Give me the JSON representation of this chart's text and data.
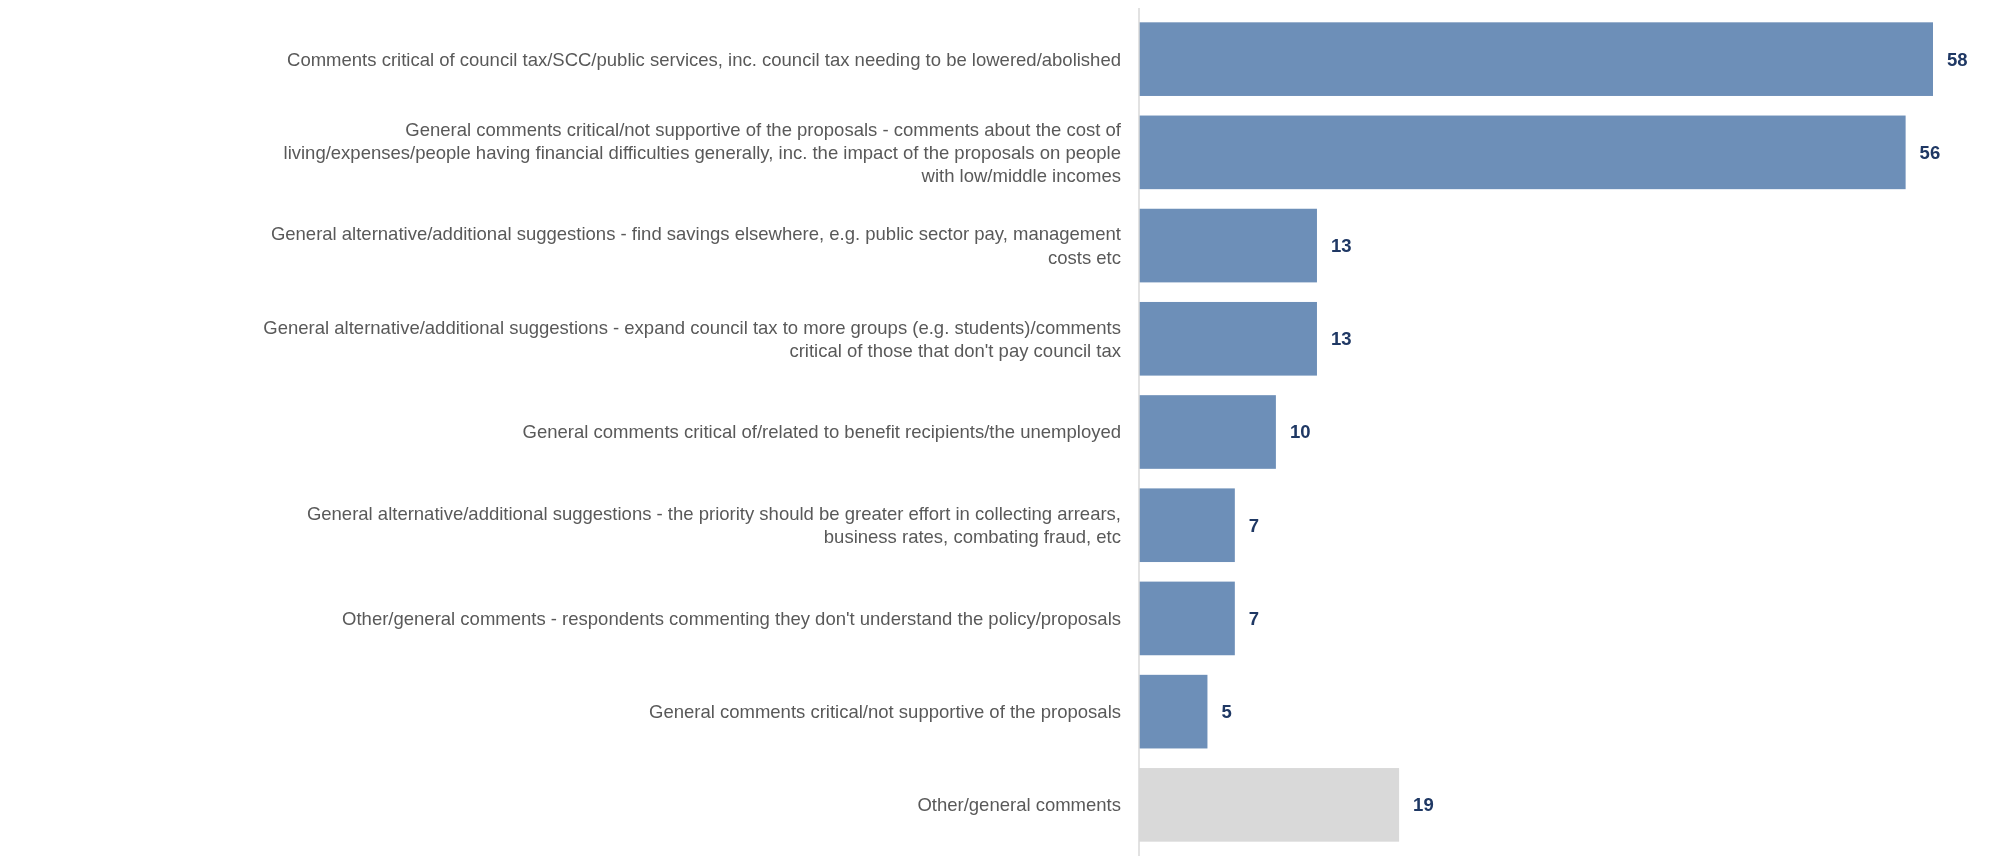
{
  "chart_data": {
    "type": "bar",
    "orientation": "horizontal",
    "categories": [
      "Comments critical of council tax/SCC/public services, inc. council tax needing to be lowered/abolished",
      "General comments critical/not supportive of the proposals - comments about the cost of living/expenses/people having financial difficulties generally, inc. the impact of the proposals on people with low/middle incomes",
      "General alternative/additional suggestions - find savings elsewhere, e.g. public sector pay, management costs etc",
      "General alternative/additional suggestions - expand council tax to more groups (e.g. students)/comments critical of those that don't pay council tax",
      "General comments critical of/related to benefit recipients/the unemployed",
      "General alternative/additional suggestions - the priority should be greater effort in collecting arrears, business rates, combating fraud, etc",
      "Other/general comments - respondents commenting they don't understand the policy/proposals",
      "General comments critical/not supportive of the proposals",
      "Other/general comments"
    ],
    "values": [
      58,
      56,
      13,
      13,
      10,
      7,
      7,
      5,
      19
    ],
    "colors": [
      "#6d8fb8",
      "#6d8fb8",
      "#6d8fb8",
      "#6d8fb8",
      "#6d8fb8",
      "#6d8fb8",
      "#6d8fb8",
      "#6d8fb8",
      "#d9d9d9"
    ],
    "data_labels": true
  }
}
